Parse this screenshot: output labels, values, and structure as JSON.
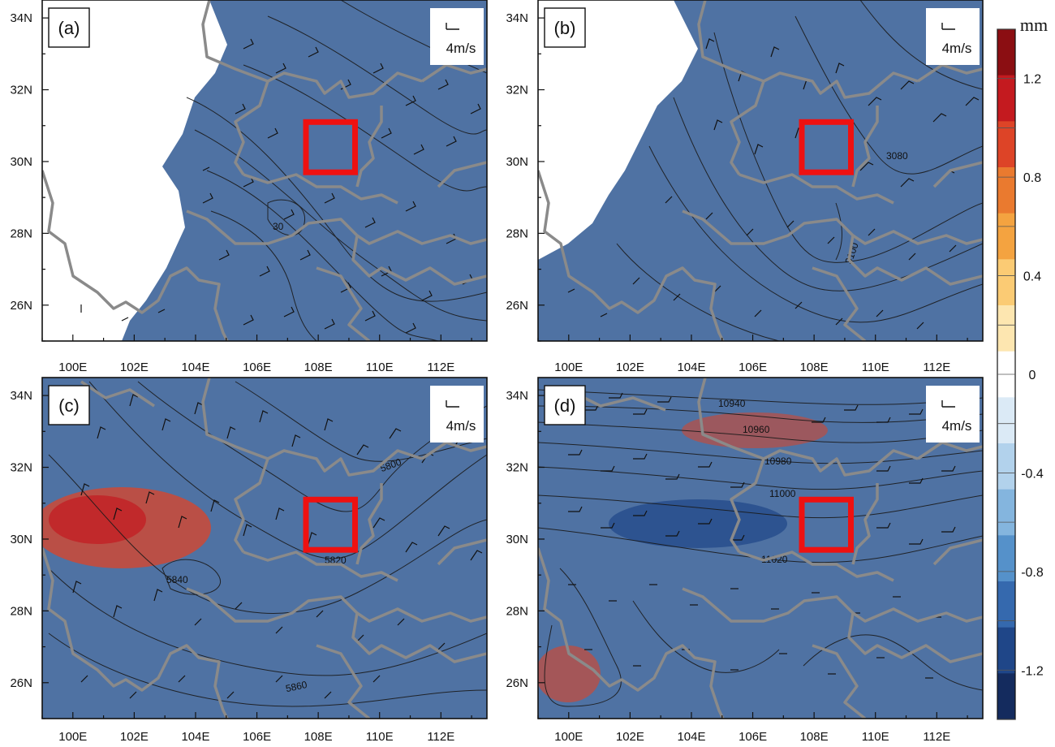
{
  "figure": {
    "colorbar": {
      "unit": "mm",
      "levels": [
        -1.4,
        -1.2,
        -1.0,
        -0.8,
        -0.6,
        -0.4,
        -0.2,
        0,
        0.2,
        0.4,
        0.6,
        0.8,
        1.0,
        1.2,
        1.4
      ],
      "tick_labels": [
        "1.2",
        "0.8",
        "0.4",
        "0",
        "-0.4",
        "-0.8",
        "-1.2"
      ],
      "colors": [
        "#8b0e12",
        "#c41a1f",
        "#dd4427",
        "#ea7a2f",
        "#f4a340",
        "#fbcb74",
        "#fde6b0",
        "#ffffff",
        "#dbeaf6",
        "#b2d2ec",
        "#84b5de",
        "#5591ca",
        "#3569ae",
        "#1f4688",
        "#142b5e"
      ]
    },
    "map": {
      "lon_range": [
        99,
        113.5
      ],
      "lat_range": [
        25,
        34.5
      ],
      "x_ticks": [
        "100E",
        "102E",
        "104E",
        "106E",
        "108E",
        "110E",
        "112E"
      ],
      "y_ticks": [
        "34N",
        "32N",
        "30N",
        "28N",
        "26N"
      ],
      "highlight_box_color": "#ee1111",
      "highlight_box": {
        "lon": [
          107.6,
          109.2
        ],
        "lat": [
          29.7,
          31.1
        ]
      },
      "reference_vector_label": "4m/s"
    },
    "panels": [
      {
        "id": "a",
        "label": "(a)",
        "contour_labels": [
          "30"
        ]
      },
      {
        "id": "b",
        "label": "(b)",
        "contour_labels": [
          "3080",
          "3100"
        ]
      },
      {
        "id": "c",
        "label": "(c)",
        "contour_labels": [
          "5800",
          "5840",
          "5820",
          "5860"
        ]
      },
      {
        "id": "d",
        "label": "(d)",
        "contour_labels": [
          "10940",
          "10960",
          "10980",
          "11000",
          "11020"
        ]
      }
    ]
  }
}
